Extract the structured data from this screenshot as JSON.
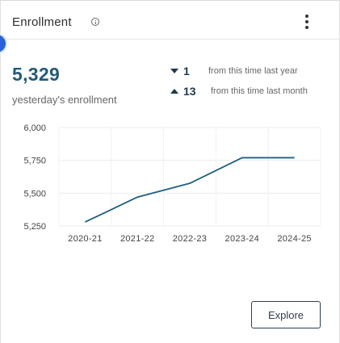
{
  "header": {
    "title": "Enrollment",
    "info_icon": "info-icon",
    "menu_icon": "kebab-menu-icon"
  },
  "summary": {
    "value": "5,329",
    "label": "yesterday's enrollment",
    "changes": [
      {
        "direction": "down",
        "amount": "1",
        "text": "from this time last year"
      },
      {
        "direction": "up",
        "amount": "13",
        "text": "from this time last month"
      }
    ]
  },
  "chart_data": {
    "type": "line",
    "categories": [
      "2020-21",
      "2021-22",
      "2022-23",
      "2023-24",
      "2024-25"
    ],
    "series": [
      {
        "values": [
          5280,
          5470,
          5575,
          5770,
          5770
        ],
        "color": "#1f5f80"
      }
    ],
    "y_ticks": [
      "6,000",
      "5,750",
      "5,500",
      "5,250"
    ],
    "y_tick_values": [
      6000,
      5750,
      5500,
      5250
    ],
    "ylim": [
      5250,
      6000
    ],
    "grid": true,
    "title": "",
    "xlabel": "",
    "ylabel": ""
  },
  "actions": {
    "explore_label": "Explore"
  }
}
